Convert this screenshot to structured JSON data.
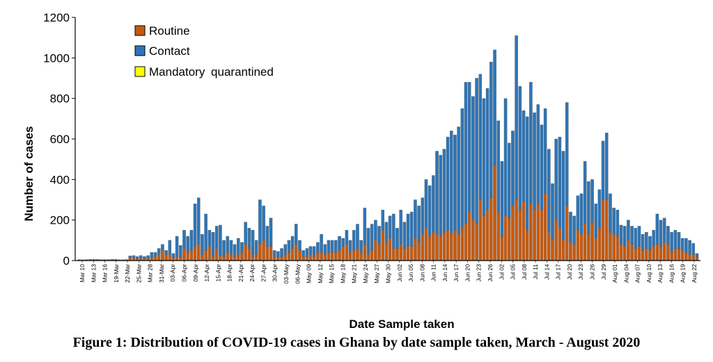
{
  "figure_caption": "Figure 1: Distribution of COVID-19 cases in Ghana by date sample taken, March - August 2020",
  "chart_data": {
    "type": "bar",
    "stacked": true,
    "xlabel": "Date Sample taken",
    "ylabel": "Number of cases",
    "ylim": [
      0,
      1200
    ],
    "yticks": [
      0,
      200,
      400,
      600,
      800,
      1000,
      1200
    ],
    "grid": false,
    "legend_position": "top-left",
    "tick_labels": [
      "Mar 10",
      "Mar 13",
      "Mar 16",
      "19-Mar",
      "22-Mar",
      "25-Mar",
      "Mar 28",
      "31-Mar",
      "03-Apr",
      "06-Apr",
      "09-Apr",
      "12-Apr",
      "15-Apr",
      "18-Apr",
      "21-Apr",
      "24-Apr",
      "27-Apr",
      "30-Apr",
      "03-May",
      "06-May",
      "May 09",
      "May 12",
      "May 15",
      "May 18",
      "May 21",
      "May 24",
      "May 27",
      "May 30",
      "Jun 02",
      "Jun 05",
      "Jun 08",
      "Jun 11",
      "Jun 14",
      "Jun 17",
      "Jun 20",
      "Jun 23",
      "Jun 26",
      "Jul 02",
      "Jul 05",
      "Jul 08",
      "Jul 11",
      "Jul 14",
      "Jul 17",
      "Jul 20",
      "Jul 23",
      "Jul 26",
      "Jul 29",
      "Aug 01",
      "Aug 04",
      "Aug 07",
      "Aug 10",
      "Aug 13",
      "Aug 16",
      "Aug 19",
      "Aug 22"
    ],
    "series": [
      {
        "name": "Routine",
        "color": "#C55A11",
        "values": [
          2,
          2,
          3,
          2,
          3,
          2,
          2,
          3,
          2,
          3,
          3,
          2,
          2,
          2,
          15,
          15,
          10,
          10,
          10,
          10,
          15,
          20,
          30,
          50,
          30,
          30,
          15,
          20,
          15,
          60,
          40,
          50,
          70,
          80,
          30,
          50,
          70,
          20,
          60,
          25,
          20,
          40,
          30,
          20,
          30,
          40,
          80,
          60,
          20,
          30,
          80,
          100,
          70,
          70,
          20,
          15,
          20,
          30,
          40,
          60,
          80,
          50,
          20,
          20,
          30,
          20,
          40,
          40,
          30,
          40,
          40,
          40,
          50,
          70,
          80,
          40,
          50,
          60,
          40,
          80,
          30,
          50,
          100,
          80,
          150,
          90,
          110,
          60,
          60,
          80,
          60,
          70,
          70,
          110,
          90,
          130,
          160,
          120,
          140,
          130,
          120,
          140,
          150,
          130,
          150,
          130,
          160,
          180,
          240,
          200,
          180,
          300,
          220,
          250,
          310,
          470,
          240,
          120,
          220,
          210,
          270,
          300,
          250,
          290,
          150,
          280,
          250,
          280,
          250,
          330,
          140,
          100,
          200,
          160,
          100,
          270,
          90,
          80,
          150,
          130,
          180,
          130,
          190,
          110,
          160,
          300,
          300,
          140,
          130,
          120,
          80,
          70,
          100,
          80,
          60,
          70,
          50,
          60,
          50,
          70,
          80,
          70,
          90,
          80,
          40,
          60,
          60,
          50,
          40,
          30,
          30,
          15
        ]
      },
      {
        "name": "Contact",
        "color": "#2E75B6",
        "values": [
          3,
          2,
          2,
          4,
          3,
          4,
          3,
          2,
          3,
          3,
          3,
          2,
          2,
          3,
          8,
          10,
          10,
          15,
          10,
          15,
          25,
          20,
          30,
          30,
          20,
          70,
          20,
          100,
          60,
          90,
          80,
          100,
          210,
          230,
          100,
          180,
          80,
          120,
          110,
          150,
          80,
          80,
          70,
          60,
          80,
          50,
          110,
          100,
          130,
          70,
          220,
          170,
          100,
          140,
          30,
          30,
          40,
          50,
          60,
          60,
          100,
          50,
          30,
          40,
          40,
          50,
          50,
          90,
          50,
          60,
          60,
          60,
          70,
          40,
          70,
          60,
          100,
          120,
          60,
          180,
          130,
          130,
          100,
          90,
          100,
          100,
          110,
          170,
          100,
          170,
          130,
          160,
          170,
          190,
          180,
          180,
          240,
          250,
          280,
          410,
          400,
          410,
          460,
          510,
          470,
          530,
          590,
          700,
          640,
          610,
          720,
          620,
          580,
          600,
          670,
          570,
          450,
          370,
          580,
          370,
          370,
          810,
          610,
          450,
          560,
          600,
          480,
          490,
          420,
          420,
          410,
          280,
          400,
          450,
          440,
          510,
          150,
          140,
          170,
          200,
          310,
          260,
          210,
          170,
          190,
          290,
          330,
          190,
          130,
          130,
          95,
          100,
          100,
          90,
          100,
          100,
          80,
          80,
          70,
          80,
          150,
          130,
          120,
          90,
          100,
          90,
          80,
          60,
          70,
          70,
          55,
          20
        ]
      },
      {
        "name": "Mandatory quarantined",
        "color": "#FFFF00",
        "values": [
          0,
          0,
          0,
          0,
          0,
          0,
          0,
          0,
          0,
          0,
          0,
          0,
          0,
          0,
          0,
          0,
          0,
          0,
          0,
          0,
          0,
          0,
          0,
          0,
          0,
          0,
          0,
          0,
          0,
          0,
          0,
          0,
          0,
          0,
          0,
          0,
          0,
          0,
          0,
          0,
          0,
          0,
          0,
          0,
          0,
          0,
          0,
          0,
          0,
          0,
          0,
          0,
          0,
          0,
          0,
          0,
          0,
          0,
          0,
          0,
          0,
          0,
          0,
          0,
          0,
          0,
          0,
          0,
          0,
          0,
          0,
          0,
          0,
          0,
          0,
          0,
          0,
          0,
          0,
          0,
          0,
          0,
          0,
          0,
          0,
          0,
          0,
          0,
          0,
          0,
          0,
          0,
          0,
          0,
          0,
          0,
          0,
          0,
          0,
          0,
          0,
          0,
          0,
          0,
          0,
          0,
          0,
          0,
          0,
          0,
          0,
          0,
          0,
          0,
          0,
          0,
          0,
          0,
          0,
          0,
          0,
          0,
          0,
          0,
          0,
          0,
          0,
          0,
          0,
          0,
          0,
          0,
          0,
          0,
          0,
          0,
          0,
          0,
          0,
          0,
          0,
          0,
          0,
          0,
          0,
          0,
          0,
          0,
          0,
          0,
          0,
          0,
          0,
          0,
          0,
          0,
          0,
          0,
          0,
          0,
          0,
          0,
          0,
          0,
          0,
          0,
          0,
          0,
          0,
          0,
          0,
          0
        ]
      }
    ]
  }
}
